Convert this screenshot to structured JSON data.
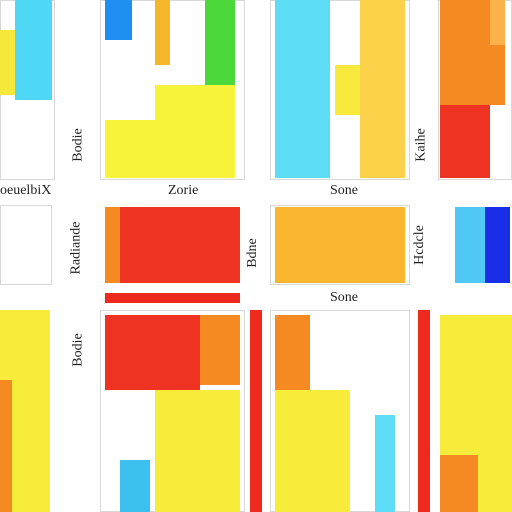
{
  "labels": [
    "oeuelbiX",
    "Zorie",
    "Sone",
    "Sone",
    "Bodie",
    "Radiande",
    "Bodie",
    "Kaihe",
    "Hcdcle",
    "Bdne"
  ]
}
